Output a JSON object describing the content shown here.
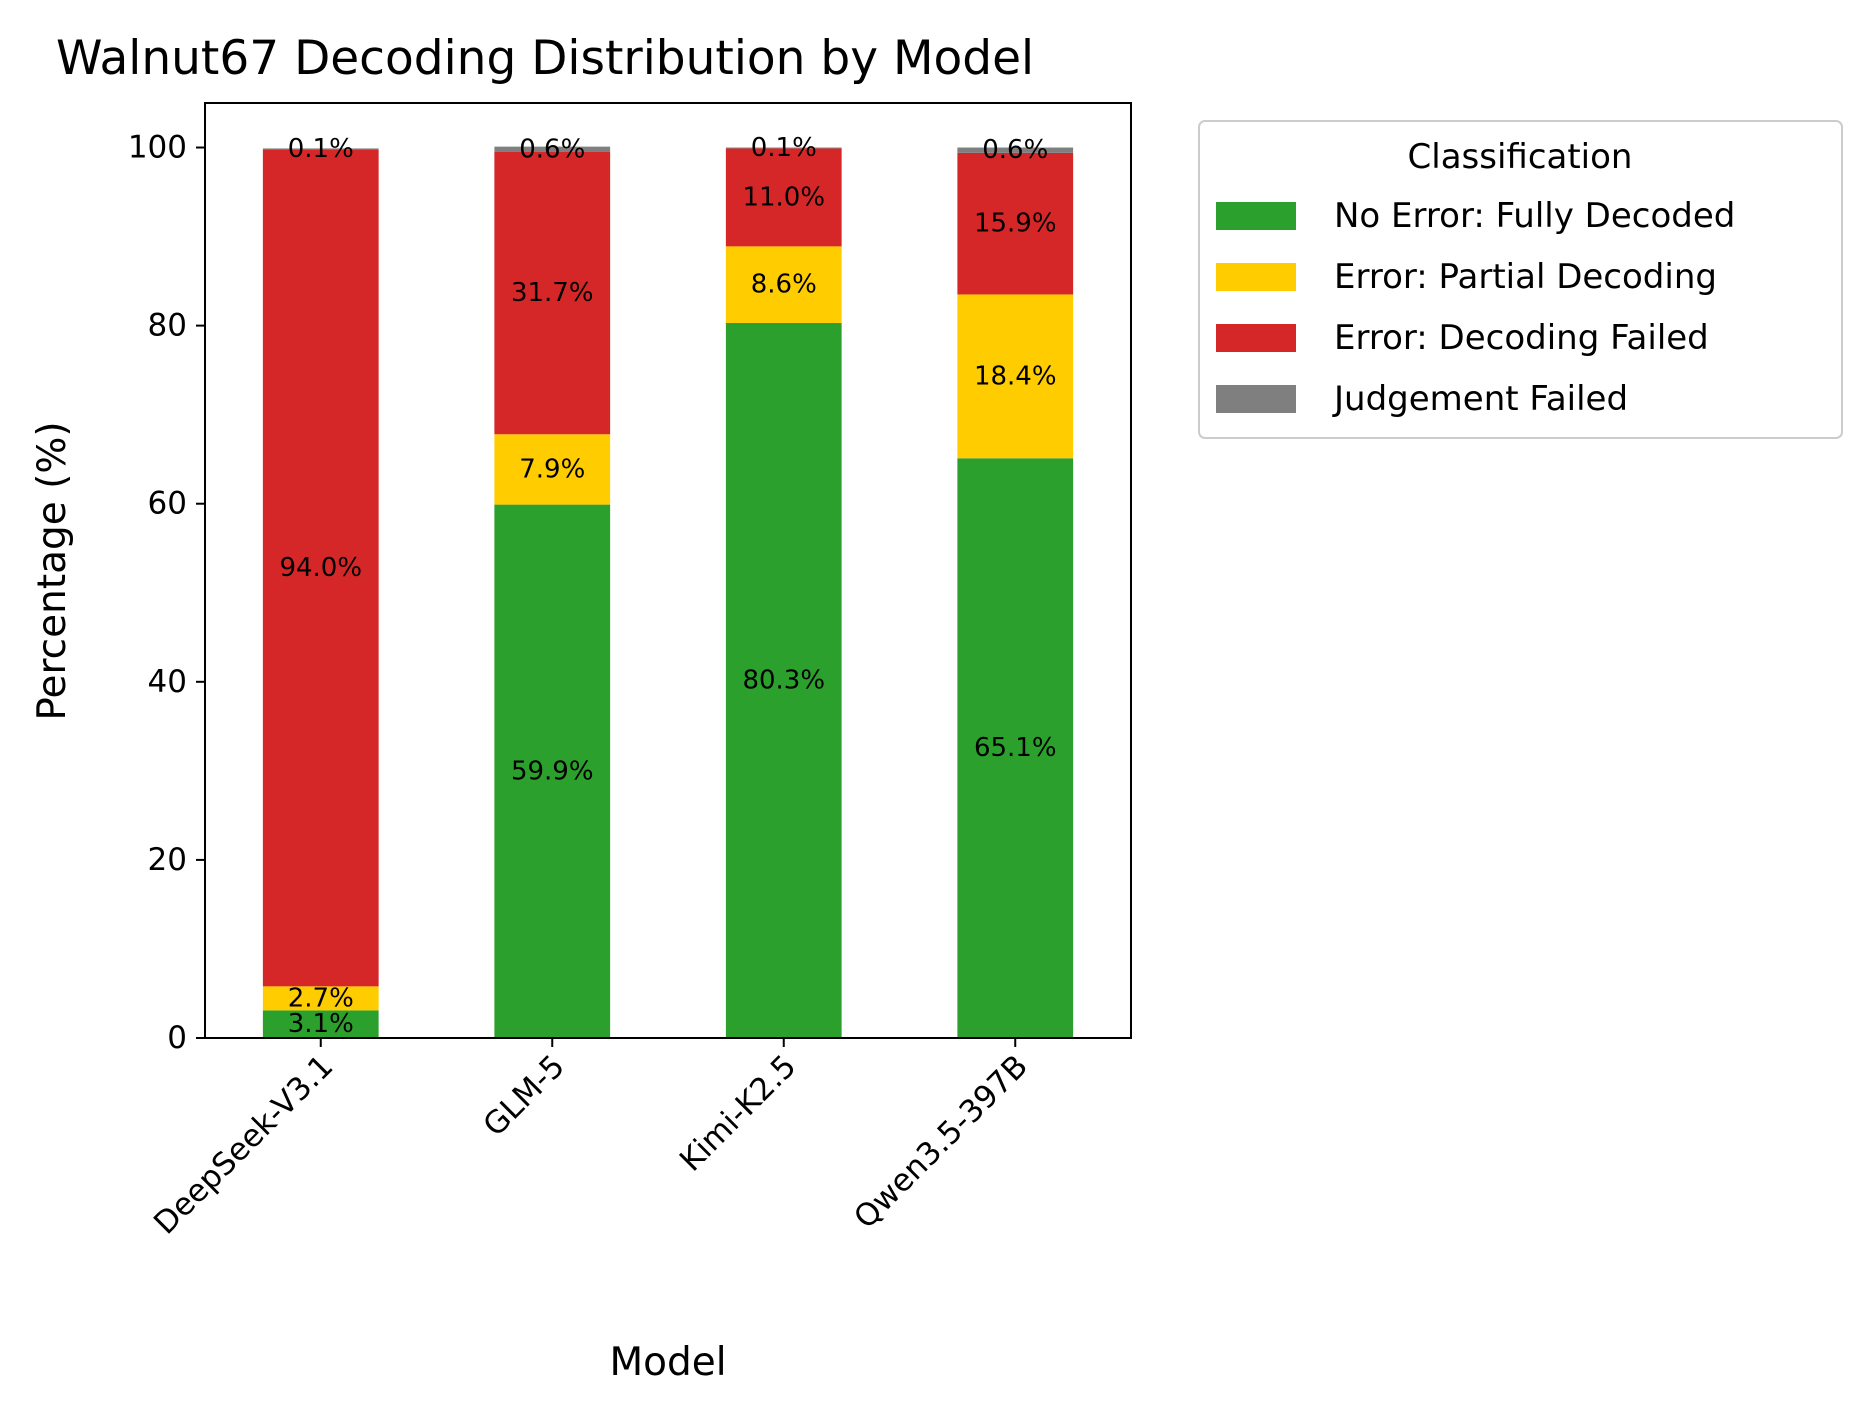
{
  "chart_data": {
    "type": "bar",
    "stacked": true,
    "title": "Walnut67 Decoding Distribution by Model",
    "xlabel": "Model",
    "ylabel": "Percentage (%)",
    "ylim": [
      0,
      105
    ],
    "yticks": [
      "0",
      "20",
      "40",
      "60",
      "80",
      "100"
    ],
    "categories": [
      "DeepSeek-V3.1",
      "GLM-5",
      "Kimi-K2.5",
      "Qwen3.5-397B"
    ],
    "grid": false,
    "legend": {
      "title": "Classification",
      "placement": "outside-top-right"
    },
    "series": [
      {
        "name": "No Error: Fully Decoded",
        "color": "#2ca02c",
        "values": [
          3.1,
          59.9,
          80.3,
          65.1
        ],
        "labels": [
          "3.1%",
          "59.9%",
          "80.3%",
          "65.1%"
        ]
      },
      {
        "name": "Error: Partial Decoding",
        "color": "#ffcc00",
        "values": [
          2.7,
          7.9,
          8.6,
          18.4
        ],
        "labels": [
          "2.7%",
          "7.9%",
          "8.6%",
          "18.4%"
        ]
      },
      {
        "name": "Error: Decoding Failed",
        "color": "#d62728",
        "values": [
          94.0,
          31.7,
          11.0,
          15.9
        ],
        "labels": [
          "94.0%",
          "31.7%",
          "11.0%",
          "15.9%"
        ]
      },
      {
        "name": "Judgement Failed",
        "color": "#7f7f7f",
        "values": [
          0.1,
          0.6,
          0.1,
          0.6
        ],
        "labels": [
          "0.1%",
          "0.6%",
          "0.1%",
          "0.6%"
        ]
      }
    ]
  }
}
